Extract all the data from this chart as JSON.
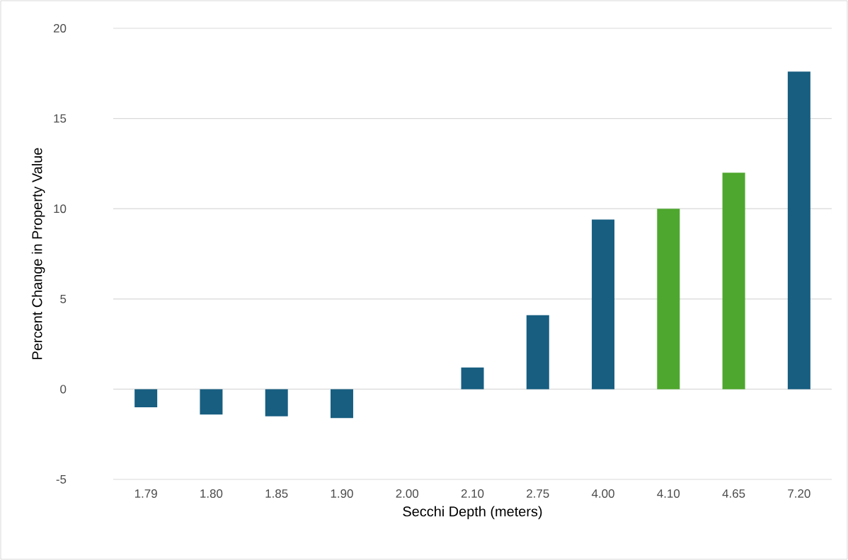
{
  "chart_data": {
    "type": "bar",
    "xlabel": "Secchi Depth (meters)",
    "ylabel": "Percent Change in Property Value",
    "categories": [
      "1.79",
      "1.80",
      "1.85",
      "1.90",
      "2.00",
      "2.10",
      "2.75",
      "4.00",
      "4.10",
      "4.65",
      "7.20"
    ],
    "values": [
      -1.0,
      -1.4,
      -1.5,
      -1.6,
      0,
      1.2,
      4.1,
      9.4,
      10.0,
      12.0,
      17.6
    ],
    "colors": [
      "#175e81",
      "#175e81",
      "#175e81",
      "#175e81",
      "#175e81",
      "#175e81",
      "#175e81",
      "#175e81",
      "#4ea72e",
      "#4ea72e",
      "#175e81"
    ],
    "ylim": [
      -5,
      20
    ],
    "yticks": [
      -5,
      0,
      5,
      10,
      15,
      20
    ],
    "grid": "y"
  }
}
